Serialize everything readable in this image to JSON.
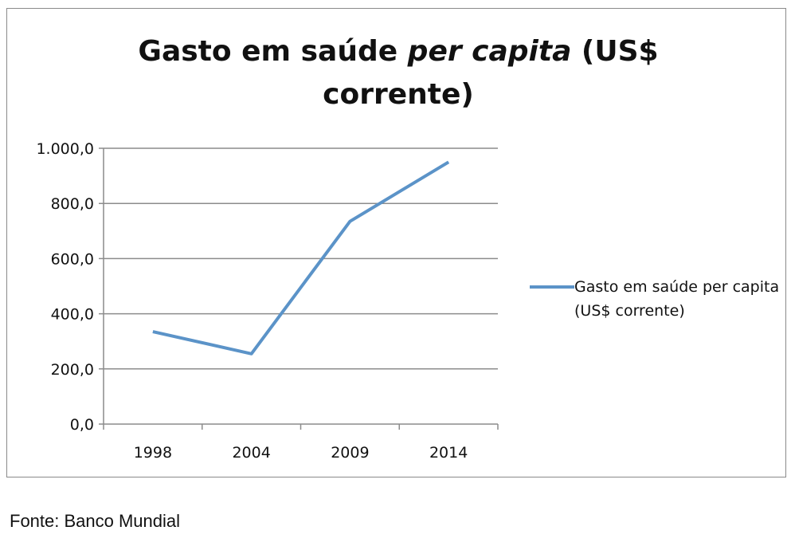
{
  "chart_data": {
    "type": "line",
    "title_parts": [
      "Gasto em saúde ",
      "per capita",
      " (US$",
      "corrente)"
    ],
    "categories": [
      "1998",
      "2004",
      "2009",
      "2014"
    ],
    "series": [
      {
        "name": "Gasto em saúde per capita (US$ corrente)",
        "values": [
          335,
          255,
          735,
          950
        ],
        "color": "#5b93c8"
      }
    ],
    "y_ticks": [
      "0,0",
      "200,0",
      "400,0",
      "600,0",
      "800,0",
      "1.000,0"
    ],
    "ylim": [
      0,
      1000
    ],
    "grid": true,
    "legend": "right"
  },
  "source": "Fonte: Banco Mundial"
}
